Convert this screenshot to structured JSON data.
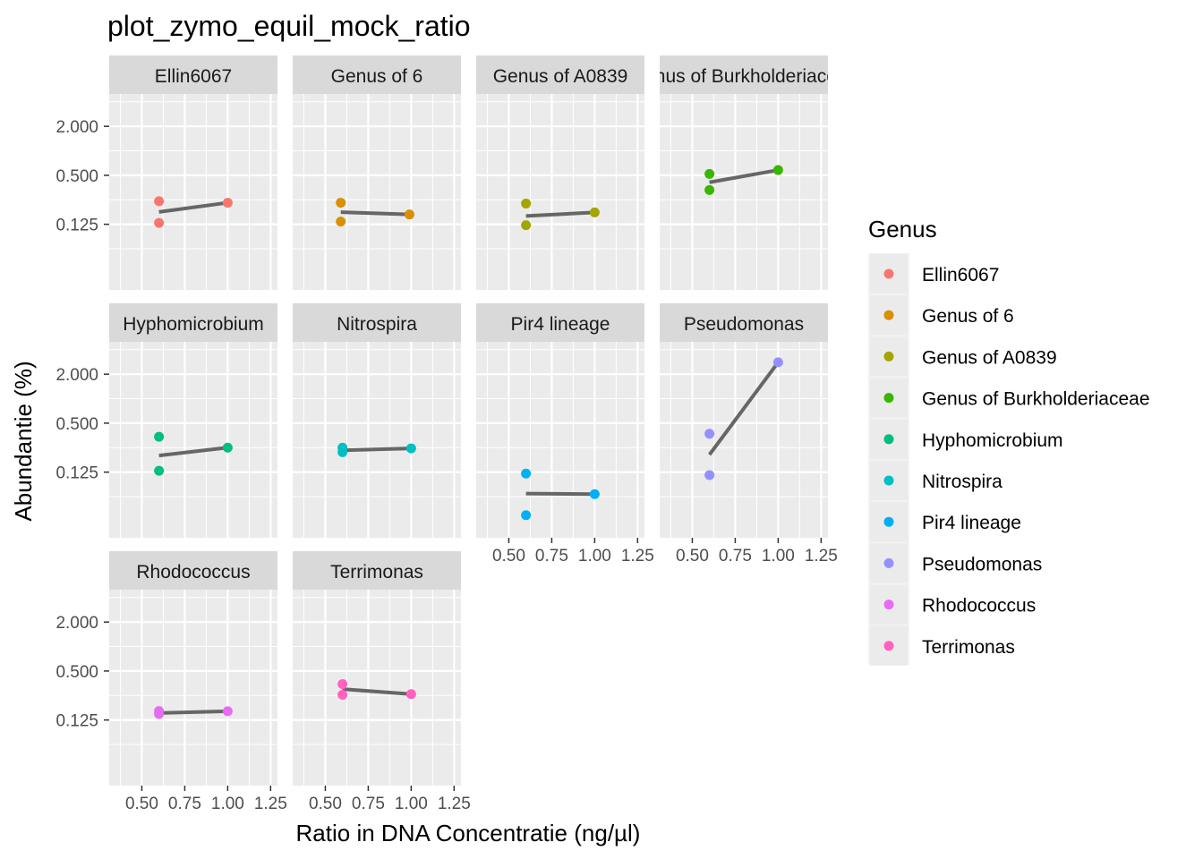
{
  "chart_data": {
    "type": "scatter",
    "title": "plot_zymo_equil_mock_ratio",
    "xlabel": "Ratio in DNA Concentratie (ng/µl)",
    "ylabel": "Abundantie (%)",
    "x_scale": "linear",
    "y_scale": "log2",
    "xlim": [
      0.31,
      1.29
    ],
    "ylim": [
      0.0195,
      5.0
    ],
    "x_ticks": [
      0.5,
      0.75,
      1.0,
      1.25
    ],
    "x_tick_labels": [
      "0.50",
      "0.75",
      "1.00",
      "1.25"
    ],
    "y_ticks": [
      0.125,
      0.5,
      2.0
    ],
    "y_tick_labels": [
      "0.125",
      "0.500",
      "2.000"
    ],
    "grid": true,
    "legend": {
      "title": "Genus",
      "position": "right",
      "entries": [
        {
          "label": "Ellin6067",
          "color": "#F8766D"
        },
        {
          "label": "Genus of 6",
          "color": "#D89000"
        },
        {
          "label": "Genus of A0839",
          "color": "#A3A500"
        },
        {
          "label": "Genus of Burkholderiaceae",
          "color": "#39B600"
        },
        {
          "label": "Hyphomicrobium",
          "color": "#00BF7D"
        },
        {
          "label": "Nitrospira",
          "color": "#00BFC4"
        },
        {
          "label": "Pir4 lineage",
          "color": "#00B0F6"
        },
        {
          "label": "Pseudomonas",
          "color": "#9590FF"
        },
        {
          "label": "Rhodococcus",
          "color": "#E76BF3"
        },
        {
          "label": "Terrimonas",
          "color": "#FF62BC"
        }
      ]
    },
    "trend_line_color": "#666666",
    "facets": [
      {
        "name": "Ellin6067",
        "strip_label": "Ellin6067",
        "color": "#F8766D",
        "points": [
          {
            "x": 0.6,
            "y": 0.24
          },
          {
            "x": 0.6,
            "y": 0.13
          },
          {
            "x": 1.0,
            "y": 0.23
          }
        ],
        "trend": [
          {
            "x": 0.6,
            "y": 0.177
          },
          {
            "x": 1.0,
            "y": 0.23
          }
        ]
      },
      {
        "name": "Genus of 6",
        "strip_label": "Genus of 6",
        "color": "#D89000",
        "points": [
          {
            "x": 0.59,
            "y": 0.23
          },
          {
            "x": 0.59,
            "y": 0.135
          },
          {
            "x": 0.99,
            "y": 0.165
          }
        ],
        "trend": [
          {
            "x": 0.59,
            "y": 0.176
          },
          {
            "x": 0.99,
            "y": 0.165
          }
        ]
      },
      {
        "name": "Genus of A0839",
        "strip_label": "Genus of A0839",
        "color": "#A3A500",
        "points": [
          {
            "x": 0.6,
            "y": 0.225
          },
          {
            "x": 0.6,
            "y": 0.122
          },
          {
            "x": 1.0,
            "y": 0.175
          }
        ],
        "trend": [
          {
            "x": 0.6,
            "y": 0.158
          },
          {
            "x": 1.0,
            "y": 0.175
          }
        ]
      },
      {
        "name": "Genus of Burkholderiaceae",
        "strip_label": "Genus of Burkholderiaceae",
        "color": "#39B600",
        "points": [
          {
            "x": 0.6,
            "y": 0.52
          },
          {
            "x": 0.6,
            "y": 0.33
          },
          {
            "x": 1.0,
            "y": 0.58
          }
        ],
        "trend": [
          {
            "x": 0.6,
            "y": 0.41
          },
          {
            "x": 1.0,
            "y": 0.58
          }
        ]
      },
      {
        "name": "Hyphomicrobium",
        "strip_label": "Hyphomicrobium",
        "color": "#00BF7D",
        "points": [
          {
            "x": 0.6,
            "y": 0.34
          },
          {
            "x": 0.6,
            "y": 0.13
          },
          {
            "x": 1.0,
            "y": 0.25
          }
        ],
        "trend": [
          {
            "x": 0.6,
            "y": 0.2
          },
          {
            "x": 1.0,
            "y": 0.25
          }
        ]
      },
      {
        "name": "Nitrospira",
        "strip_label": "Nitrospira",
        "color": "#00BFC4",
        "points": [
          {
            "x": 0.6,
            "y": 0.25
          },
          {
            "x": 0.6,
            "y": 0.22
          },
          {
            "x": 1.0,
            "y": 0.245
          }
        ],
        "trend": [
          {
            "x": 0.6,
            "y": 0.232
          },
          {
            "x": 1.0,
            "y": 0.245
          }
        ]
      },
      {
        "name": "Pir4 lineage",
        "strip_label": "Pir4 lineage",
        "color": "#00B0F6",
        "points": [
          {
            "x": 0.6,
            "y": 0.12
          },
          {
            "x": 0.6,
            "y": 0.037
          },
          {
            "x": 1.0,
            "y": 0.067
          }
        ],
        "trend": [
          {
            "x": 0.6,
            "y": 0.068
          },
          {
            "x": 1.0,
            "y": 0.067
          }
        ]
      },
      {
        "name": "Pseudomonas",
        "strip_label": "Pseudomonas",
        "color": "#9590FF",
        "points": [
          {
            "x": 0.6,
            "y": 0.37
          },
          {
            "x": 0.6,
            "y": 0.115
          },
          {
            "x": 1.0,
            "y": 2.8
          }
        ],
        "trend": [
          {
            "x": 0.6,
            "y": 0.205
          },
          {
            "x": 1.0,
            "y": 2.8
          }
        ]
      },
      {
        "name": "Rhodococcus",
        "strip_label": "Rhodococcus",
        "color": "#E76BF3",
        "points": [
          {
            "x": 0.6,
            "y": 0.161
          },
          {
            "x": 0.6,
            "y": 0.148
          },
          {
            "x": 1.0,
            "y": 0.16
          }
        ],
        "trend": [
          {
            "x": 0.6,
            "y": 0.152
          },
          {
            "x": 1.0,
            "y": 0.16
          }
        ]
      },
      {
        "name": "Terrimonas",
        "strip_label": "Terrimonas",
        "color": "#FF62BC",
        "points": [
          {
            "x": 0.6,
            "y": 0.345
          },
          {
            "x": 0.6,
            "y": 0.255
          },
          {
            "x": 1.0,
            "y": 0.26
          }
        ],
        "trend": [
          {
            "x": 0.6,
            "y": 0.3
          },
          {
            "x": 1.0,
            "y": 0.26
          }
        ]
      }
    ]
  }
}
